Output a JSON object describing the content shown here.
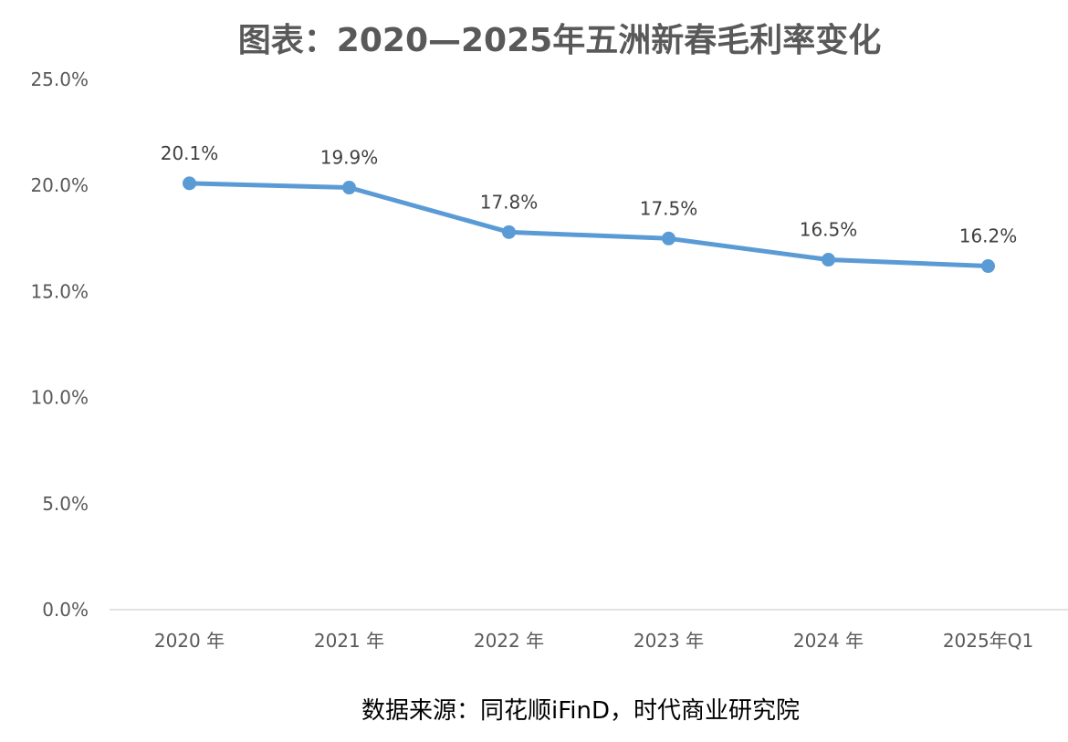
{
  "chart_data": {
    "type": "line",
    "title": "图表：2020—2025年五洲新春毛利率变化",
    "xlabel": "",
    "ylabel": "",
    "categories": [
      "2020 年",
      "2021 年",
      "2022 年",
      "2023 年",
      "2024 年",
      "2025年Q1"
    ],
    "series": [
      {
        "values": [
          20.1,
          19.9,
          17.8,
          17.5,
          16.5,
          16.2
        ],
        "labels": [
          "20.1%",
          "19.9%",
          "17.8%",
          "17.5%",
          "16.5%",
          "16.2%"
        ],
        "color": "#5B9BD5"
      }
    ],
    "ylim": [
      0,
      25
    ],
    "yticks": [
      0,
      5,
      10,
      15,
      20,
      25
    ],
    "ytick_labels": [
      "0.0%",
      "5.0%",
      "10.0%",
      "15.0%",
      "20.0%",
      "25.0%"
    ],
    "grid": false,
    "legend": "none"
  },
  "source": "数据来源：同花顺iFinD，时代商业研究院"
}
